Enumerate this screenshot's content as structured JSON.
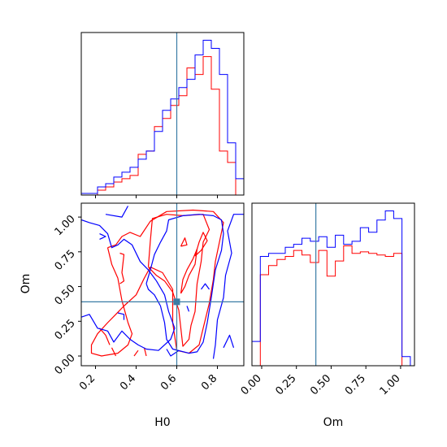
{
  "colors": {
    "red": "#ff0000",
    "blue": "#0000ff",
    "truth": "#3a7ca5",
    "frame": "#000000"
  },
  "chart_data": {
    "type": "corner",
    "parameters": [
      "H0",
      "Om"
    ],
    "truths": {
      "H0": 0.6,
      "Om": 0.39
    },
    "axes": {
      "H0": {
        "range": [
          0.13,
          0.93
        ],
        "ticks": [
          0.2,
          0.4,
          0.6,
          0.8
        ],
        "tick_labels": [
          "0.2",
          "0.4",
          "0.6",
          "0.8"
        ],
        "label": "H0"
      },
      "Om": {
        "range": [
          -0.07,
          1.1
        ],
        "ticks": [
          0.0,
          0.25,
          0.5,
          0.75,
          1.0
        ],
        "tick_labels": [
          "0.00",
          "0.25",
          "0.50",
          "0.75",
          "1.00"
        ],
        "label": "Om"
      }
    },
    "hist_H0": {
      "bin_edges": [
        0.13,
        0.17,
        0.21,
        0.25,
        0.29,
        0.33,
        0.37,
        0.41,
        0.45,
        0.49,
        0.53,
        0.57,
        0.61,
        0.65,
        0.69,
        0.73,
        0.77,
        0.81,
        0.85,
        0.89,
        0.93
      ],
      "series": [
        {
          "color": "red",
          "values": [
            0.0,
            0.0,
            0.03,
            0.05,
            0.08,
            0.1,
            0.12,
            0.25,
            0.27,
            0.42,
            0.47,
            0.55,
            0.61,
            0.78,
            0.74,
            0.85,
            0.65,
            0.27,
            0.2,
            0.0
          ]
        },
        {
          "color": "blue",
          "values": [
            0.01,
            0.01,
            0.05,
            0.07,
            0.11,
            0.14,
            0.17,
            0.22,
            0.27,
            0.39,
            0.52,
            0.59,
            0.66,
            0.71,
            0.86,
            0.95,
            0.9,
            0.74,
            0.32,
            0.1
          ]
        }
      ]
    },
    "hist_Om": {
      "bin_edges": [
        -0.07,
        -0.01,
        0.05,
        0.11,
        0.17,
        0.23,
        0.29,
        0.35,
        0.41,
        0.47,
        0.53,
        0.59,
        0.65,
        0.71,
        0.77,
        0.83,
        0.89,
        0.95,
        1.01,
        1.07
      ],
      "series": [
        {
          "color": "red",
          "values": [
            0.0,
            0.6,
            0.66,
            0.7,
            0.72,
            0.76,
            0.73,
            0.68,
            0.76,
            0.59,
            0.69,
            0.79,
            0.74,
            0.75,
            0.74,
            0.73,
            0.72,
            0.74,
            0.0
          ]
        },
        {
          "color": "blue",
          "values": [
            0.16,
            0.72,
            0.74,
            0.74,
            0.78,
            0.8,
            0.84,
            0.82,
            0.85,
            0.78,
            0.86,
            0.8,
            0.82,
            0.91,
            0.88,
            0.96,
            1.02,
            0.97,
            0.06
          ]
        }
      ]
    },
    "contours": [
      {
        "color": "red",
        "paths": [
          [
            [
              0.26,
              0.78
            ],
            [
              0.3,
              0.8
            ],
            [
              0.33,
              0.86
            ],
            [
              0.37,
              0.89
            ],
            [
              0.42,
              0.86
            ],
            [
              0.47,
              0.97
            ],
            [
              0.55,
              1.04
            ],
            [
              0.68,
              1.05
            ],
            [
              0.78,
              1.04
            ],
            [
              0.83,
              0.96
            ],
            [
              0.81,
              0.82
            ],
            [
              0.79,
              0.68
            ],
            [
              0.78,
              0.55
            ],
            [
              0.76,
              0.38
            ],
            [
              0.73,
              0.2
            ],
            [
              0.71,
              0.08
            ],
            [
              0.66,
              0.02
            ],
            [
              0.6,
              0.04
            ],
            [
              0.58,
              0.24
            ],
            [
              0.58,
              0.48
            ],
            [
              0.53,
              0.6
            ],
            [
              0.47,
              0.64
            ],
            [
              0.44,
              0.56
            ],
            [
              0.4,
              0.44
            ],
            [
              0.34,
              0.36
            ],
            [
              0.3,
              0.3
            ],
            [
              0.26,
              0.24
            ],
            [
              0.21,
              0.16
            ],
            [
              0.18,
              0.08
            ],
            [
              0.18,
              0.02
            ],
            [
              0.23,
              0.0
            ],
            [
              0.31,
              0.02
            ],
            [
              0.36,
              0.08
            ],
            [
              0.38,
              0.16
            ],
            [
              0.36,
              0.24
            ],
            [
              0.33,
              0.4
            ],
            [
              0.31,
              0.56
            ],
            [
              0.28,
              0.66
            ],
            [
              0.26,
              0.78
            ]
          ],
          [
            [
              0.46,
              0.64
            ],
            [
              0.47,
              0.83
            ],
            [
              0.48,
              0.99
            ],
            [
              0.55,
              1.02
            ],
            [
              0.63,
              1.01
            ],
            [
              0.73,
              1.02
            ],
            [
              0.76,
              0.91
            ],
            [
              0.73,
              0.82
            ],
            [
              0.72,
              0.68
            ],
            [
              0.7,
              0.52
            ],
            [
              0.69,
              0.32
            ],
            [
              0.67,
              0.22
            ],
            [
              0.66,
              0.12
            ],
            [
              0.63,
              0.07
            ],
            [
              0.62,
              0.2
            ],
            [
              0.61,
              0.33
            ],
            [
              0.58,
              0.46
            ],
            [
              0.54,
              0.54
            ],
            [
              0.5,
              0.58
            ],
            [
              0.46,
              0.64
            ]
          ],
          [
            [
              0.62,
              0.45
            ],
            [
              0.63,
              0.55
            ],
            [
              0.65,
              0.62
            ],
            [
              0.68,
              0.7
            ],
            [
              0.7,
              0.77
            ],
            [
              0.69,
              0.66
            ],
            [
              0.66,
              0.58
            ],
            [
              0.64,
              0.5
            ],
            [
              0.62,
              0.45
            ]
          ],
          [
            [
              0.69,
              0.72
            ],
            [
              0.71,
              0.82
            ],
            [
              0.73,
              0.89
            ],
            [
              0.75,
              0.83
            ],
            [
              0.72,
              0.76
            ],
            [
              0.69,
              0.72
            ]
          ],
          [
            [
              0.62,
              0.79
            ],
            [
              0.64,
              0.85
            ],
            [
              0.65,
              0.8
            ],
            [
              0.62,
              0.79
            ]
          ],
          [
            [
              0.32,
              0.74
            ],
            [
              0.34,
              0.73
            ],
            [
              0.33,
              0.6
            ],
            [
              0.34,
              0.54
            ],
            [
              0.32,
              0.52
            ]
          ],
          [
            [
              0.44,
              0.06
            ],
            [
              0.45,
              0.0
            ]
          ],
          [
            [
              0.28,
              0.06
            ],
            [
              0.3,
              0.0
            ]
          ],
          [
            [
              0.39,
              0.0
            ],
            [
              0.41,
              0.04
            ]
          ],
          [
            [
              0.22,
              0.2
            ],
            [
              0.25,
              0.15
            ],
            [
              0.27,
              0.08
            ]
          ]
        ]
      },
      {
        "color": "blue",
        "paths": [
          [
            [
              0.13,
              0.28
            ],
            [
              0.17,
              0.3
            ],
            [
              0.21,
              0.2
            ],
            [
              0.26,
              0.18
            ],
            [
              0.29,
              0.1
            ],
            [
              0.33,
              0.18
            ],
            [
              0.37,
              0.12
            ],
            [
              0.41,
              0.08
            ],
            [
              0.45,
              0.05
            ],
            [
              0.51,
              0.04
            ],
            [
              0.57,
              0.12
            ],
            [
              0.59,
              0.2
            ],
            [
              0.56,
              0.32
            ],
            [
              0.54,
              0.44
            ],
            [
              0.5,
              0.54
            ],
            [
              0.46,
              0.62
            ],
            [
              0.42,
              0.68
            ],
            [
              0.38,
              0.8
            ],
            [
              0.34,
              0.84
            ],
            [
              0.31,
              0.8
            ],
            [
              0.28,
              0.78
            ],
            [
              0.26,
              0.88
            ],
            [
              0.22,
              0.94
            ],
            [
              0.17,
              0.96
            ],
            [
              0.13,
              0.98
            ]
          ],
          [
            [
              0.45,
              0.52
            ],
            [
              0.47,
              0.62
            ],
            [
              0.49,
              0.73
            ],
            [
              0.52,
              0.82
            ],
            [
              0.55,
              0.9
            ],
            [
              0.56,
              0.98
            ],
            [
              0.63,
              1.01
            ],
            [
              0.71,
              1.02
            ],
            [
              0.78,
              1.01
            ],
            [
              0.82,
              0.98
            ],
            [
              0.83,
              0.88
            ],
            [
              0.82,
              0.76
            ],
            [
              0.79,
              0.62
            ],
            [
              0.77,
              0.42
            ],
            [
              0.75,
              0.24
            ],
            [
              0.73,
              0.1
            ],
            [
              0.7,
              0.03
            ],
            [
              0.66,
              0.02
            ],
            [
              0.58,
              0.05
            ],
            [
              0.55,
              0.12
            ],
            [
              0.54,
              0.24
            ],
            [
              0.52,
              0.36
            ],
            [
              0.49,
              0.44
            ],
            [
              0.46,
              0.48
            ],
            [
              0.45,
              0.52
            ]
          ],
          [
            [
              0.93,
              1.02
            ],
            [
              0.88,
              1.02
            ],
            [
              0.85,
              0.9
            ],
            [
              0.87,
              0.74
            ],
            [
              0.84,
              0.58
            ],
            [
              0.83,
              0.42
            ],
            [
              0.8,
              0.26
            ],
            [
              0.79,
              0.08
            ],
            [
              0.78,
              -0.02
            ]
          ],
          [
            [
              0.25,
              1.02
            ],
            [
              0.33,
              1.0
            ],
            [
              0.36,
              1.08
            ]
          ],
          [
            [
              0.22,
              0.88
            ],
            [
              0.25,
              0.86
            ],
            [
              0.22,
              0.84
            ]
          ],
          [
            [
              0.31,
              0.31
            ],
            [
              0.34,
              0.3
            ],
            [
              0.34,
              0.26
            ]
          ],
          [
            [
              0.55,
              0.05
            ],
            [
              0.57,
              0.0
            ],
            [
              0.61,
              0.04
            ]
          ],
          [
            [
              0.83,
              0.06
            ],
            [
              0.86,
              0.15
            ],
            [
              0.88,
              0.06
            ]
          ],
          [
            [
              0.72,
              0.48
            ],
            [
              0.74,
              0.52
            ],
            [
              0.76,
              0.48
            ]
          ],
          [
            [
              0.65,
              0.36
            ],
            [
              0.66,
              0.32
            ]
          ]
        ]
      }
    ]
  }
}
